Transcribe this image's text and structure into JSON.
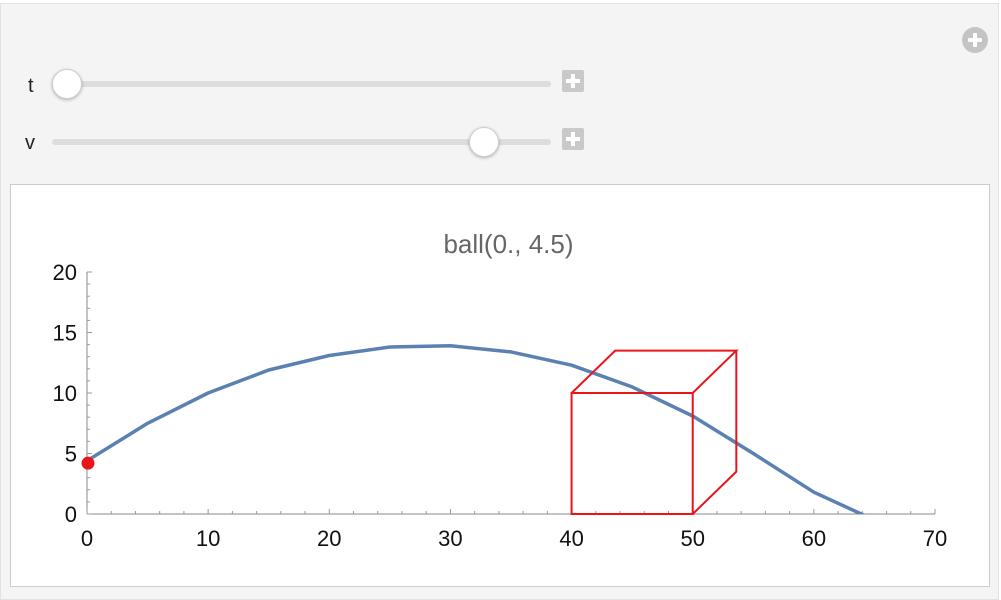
{
  "controls": {
    "add_icon": "plus-circle-icon",
    "sliders": [
      {
        "name": "t",
        "label": "t",
        "value_fraction": 0.0
      },
      {
        "name": "v",
        "label": "v",
        "value_fraction": 0.89
      }
    ]
  },
  "colors": {
    "curve": "#5b80b2",
    "cube": "#e8161b",
    "ball": "#e8161b",
    "title": "#666666"
  },
  "chart_data": {
    "type": "line",
    "title": "ball(0., 4.5)",
    "xlabel": "",
    "ylabel": "",
    "xlim": [
      0,
      70
    ],
    "ylim": [
      0,
      20
    ],
    "x_ticks": [
      "0",
      "10",
      "20",
      "30",
      "40",
      "50",
      "60",
      "70"
    ],
    "y_ticks": [
      "0",
      "5",
      "10",
      "15",
      "20"
    ],
    "series": [
      {
        "x": [
          0,
          5,
          10,
          15,
          20,
          25,
          30,
          35,
          40,
          45,
          50,
          55,
          60,
          65,
          67
        ],
        "y": [
          4.4,
          7.5,
          10.0,
          11.9,
          13.1,
          13.8,
          13.9,
          13.4,
          12.3,
          10.5,
          8.1,
          5.0,
          1.8,
          -0.5,
          -1.0
        ]
      }
    ],
    "ball": {
      "x": 0,
      "y": 4.2
    },
    "cube": {
      "front": {
        "x": [
          40,
          50
        ],
        "y": [
          0,
          10
        ]
      },
      "depth_offset": {
        "dx": 3.6,
        "dy": 3.5
      }
    },
    "grid": false
  }
}
